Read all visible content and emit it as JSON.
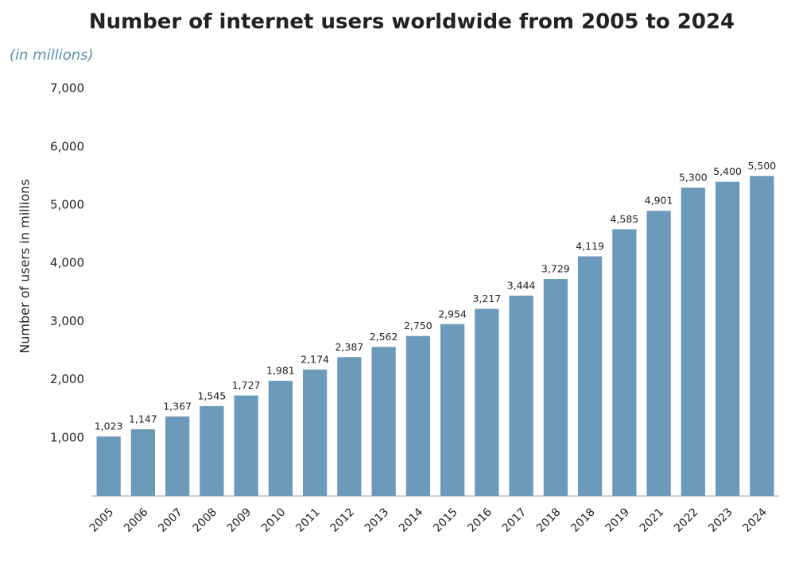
{
  "chart_data": {
    "type": "bar",
    "title": "Number of internet users worldwide from 2005 to 2024",
    "subtitle": "(in millions)",
    "y_label": "Number of users in millions",
    "categories": [
      "2005",
      "2006",
      "2007",
      "2008",
      "2009",
      "2010",
      "2011",
      "2012",
      "2013",
      "2014",
      "2015",
      "2016",
      "2017",
      "2018",
      "2018",
      "2019",
      "2021",
      "2022",
      "2023",
      "2024"
    ],
    "values": [
      1023,
      1147,
      1367,
      1545,
      1727,
      1981,
      2174,
      2387,
      2562,
      2750,
      2954,
      3217,
      3444,
      3729,
      4119,
      4585,
      4901,
      5300,
      5400,
      5500
    ],
    "value_labels": [
      "1,023",
      "1,147",
      "1,367",
      "1,545",
      "1,727",
      "1,981",
      "2,174",
      "2,387",
      "2,562",
      "2,750",
      "2,954",
      "3,217",
      "3,444",
      "3,729",
      "4,119",
      "4,585",
      "4,901",
      "5,300",
      "5,400",
      "5,500"
    ],
    "color": "#6b9aba",
    "ylim": [
      0,
      7000
    ],
    "yticks": [
      {
        "value": 1000,
        "label": "1,000"
      },
      {
        "value": 2000,
        "label": "2,000"
      },
      {
        "value": 3000,
        "label": "3,000"
      },
      {
        "value": 4000,
        "label": "4,000"
      },
      {
        "value": 5000,
        "label": "5,000"
      },
      {
        "value": 6000,
        "label": "6,000"
      },
      {
        "value": 7000,
        "label": "7,000"
      }
    ],
    "grid": false
  }
}
